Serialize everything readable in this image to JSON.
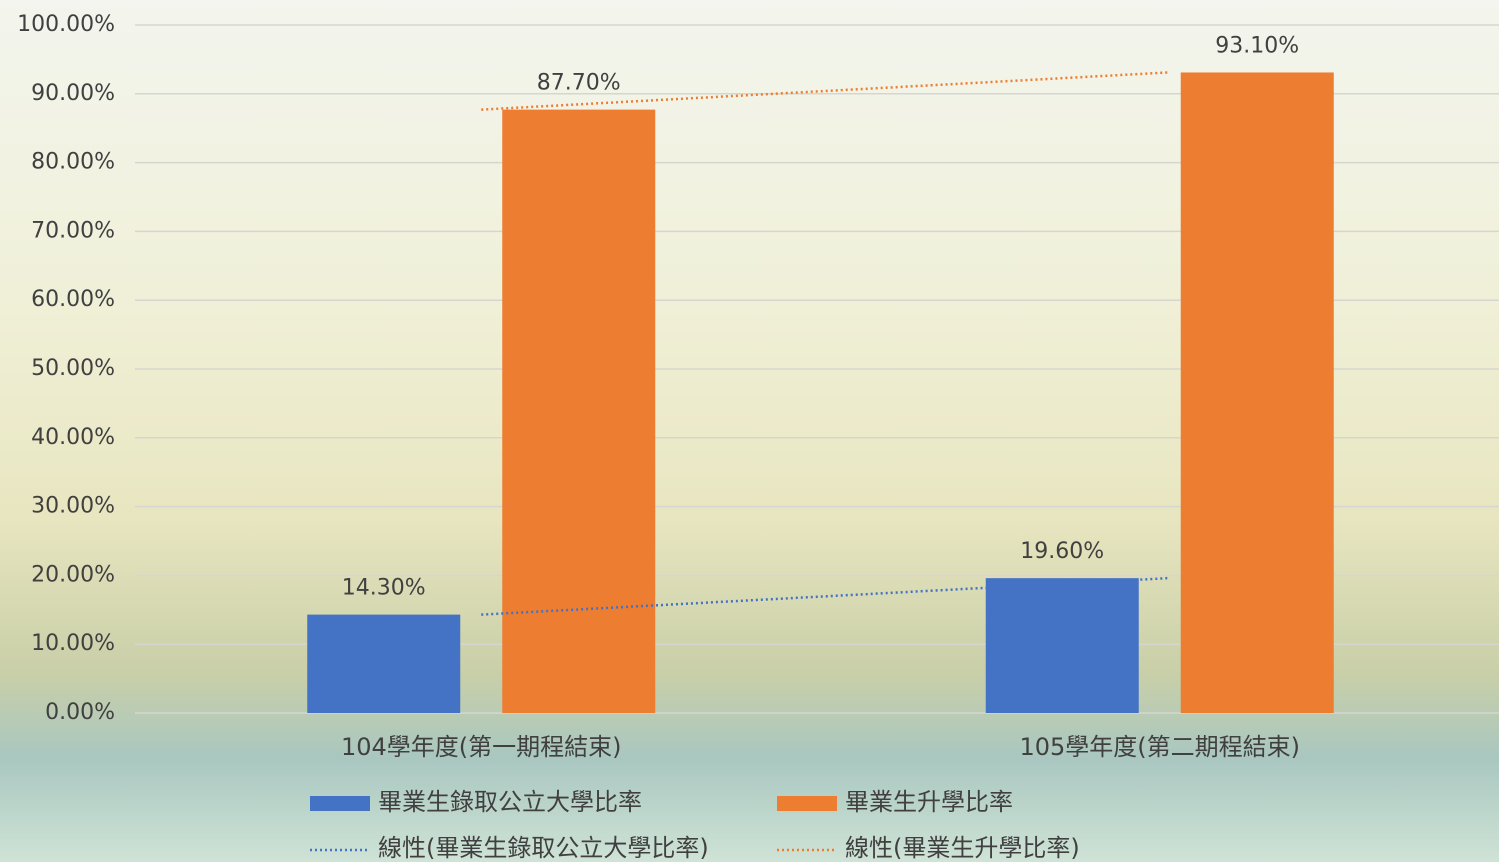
{
  "chart_data": {
    "type": "bar",
    "categories": [
      "104學年度(第一期程結束)",
      "105學年度(第二期程結束)"
    ],
    "series": [
      {
        "name": "畢業生錄取公立大學比率",
        "color": "#4472c4",
        "values": [
          14.3,
          19.6
        ],
        "value_labels": [
          "14.30%",
          "19.60%"
        ]
      },
      {
        "name": "畢業生升學比率",
        "color": "#ed7d31",
        "values": [
          87.7,
          93.1
        ],
        "value_labels": [
          "87.70%",
          "93.10%"
        ]
      }
    ],
    "trendlines": [
      {
        "name": "線性(畢業生錄取公立大學比率)",
        "series": 0,
        "color": "#4472c4"
      },
      {
        "name": "線性(畢業生升學比率)",
        "series": 1,
        "color": "#ed7d31"
      }
    ],
    "ylim": [
      0,
      100
    ],
    "yticks": [
      {
        "value": 0,
        "label": "0.00%"
      },
      {
        "value": 10,
        "label": "10.00%"
      },
      {
        "value": 20,
        "label": "20.00%"
      },
      {
        "value": 30,
        "label": "30.00%"
      },
      {
        "value": 40,
        "label": "40.00%"
      },
      {
        "value": 50,
        "label": "50.00%"
      },
      {
        "value": 60,
        "label": "60.00%"
      },
      {
        "value": 70,
        "label": "70.00%"
      },
      {
        "value": 80,
        "label": "80.00%"
      },
      {
        "value": 90,
        "label": "90.00%"
      },
      {
        "value": 100,
        "label": "100.00%"
      }
    ],
    "grid": true,
    "legend": "bottom"
  }
}
